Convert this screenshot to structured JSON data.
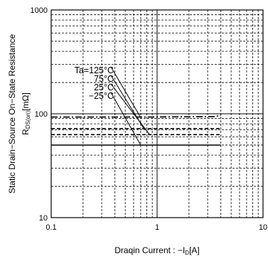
{
  "chart_data": {
    "type": "line",
    "xlabel_main": "Draqin Current : −I",
    "xlabel_sub": "D",
    "xlabel_unit": "[A]",
    "ylabel_line1": "Static Drain−Source On−State Resistance",
    "ylabel_line2_main": "R",
    "ylabel_line2_sub": "DS(on)",
    "ylabel_line2_unit": "[mΩ]",
    "x_scale": "log",
    "y_scale": "log",
    "xlim": [
      0.1,
      10
    ],
    "ylim": [
      10,
      1000
    ],
    "x_tick_labels": [
      "0.1",
      "1",
      "10"
    ],
    "y_tick_labels": [
      "10",
      "100",
      "1000"
    ],
    "grid": "on (dashed minor, solid major)",
    "series": [
      {
        "name": "Ta=125°C",
        "dash": "long-dash",
        "x": [
          0.1,
          0.7,
          3.5,
          4.0
        ],
        "y": [
          93,
          93,
          94,
          97
        ]
      },
      {
        "name": "75°C",
        "dash": "dashed",
        "x": [
          0.1,
          4.0
        ],
        "y": [
          72,
          72
        ]
      },
      {
        "name": "25°C",
        "dash": "dashed",
        "x": [
          0.1,
          4.0
        ],
        "y": [
          63,
          63
        ]
      },
      {
        "name": "−25°C",
        "dash": "solid",
        "x": [
          0.1,
          4.0
        ],
        "y": [
          50,
          50
        ]
      }
    ],
    "annotations": [
      {
        "text": "Ta=125°C",
        "anchor_x": 0.7,
        "anchor_y": 92
      },
      {
        "text": "75°C",
        "anchor_x": 0.75,
        "anchor_y": 72
      },
      {
        "text": "25°C",
        "anchor_x": 0.85,
        "anchor_y": 63
      },
      {
        "text": "−25°C",
        "anchor_x": 0.7,
        "anchor_y": 50
      }
    ]
  }
}
